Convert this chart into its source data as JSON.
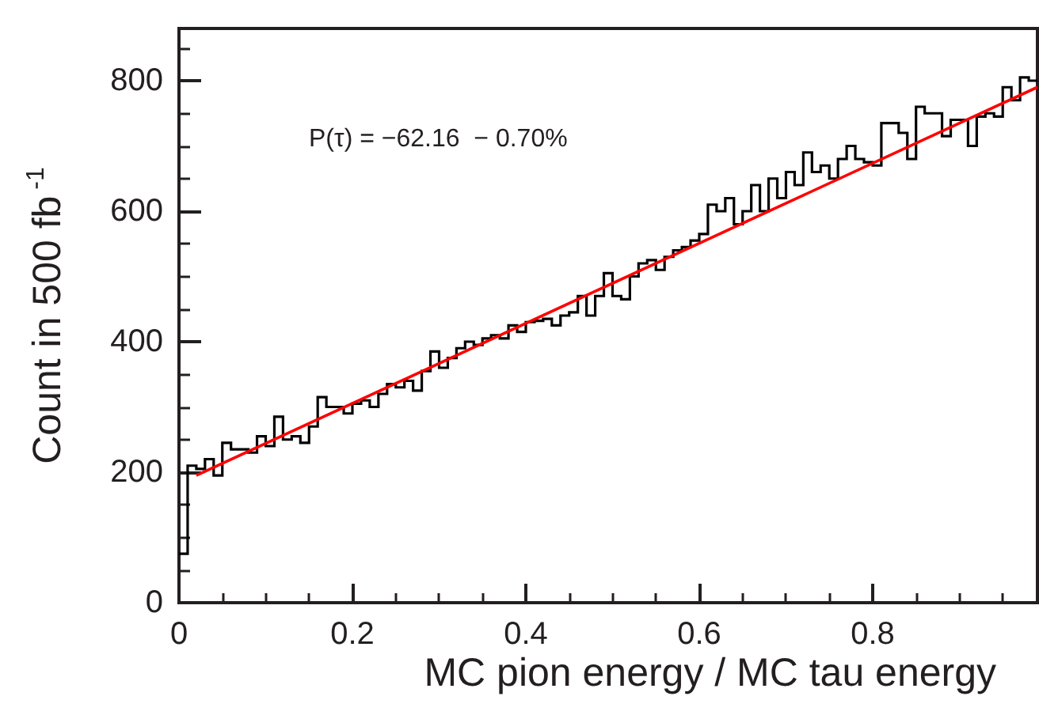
{
  "chart_data": {
    "type": "histogram",
    "xlabel": "MC pion energy / MC tau energy",
    "ylabel": "Count in 500 fb$^{-1}$",
    "annotations": [
      "P(τ) = −62.16  − 0.70%"
    ],
    "bins": [
      0,
      0.01,
      0.02,
      0.03,
      0.04,
      0.05,
      0.06,
      0.07,
      0.08,
      0.09,
      0.1,
      0.11,
      0.12,
      0.13,
      0.14,
      0.15,
      0.16,
      0.17,
      0.18,
      0.19,
      0.2,
      0.21,
      0.22,
      0.23,
      0.24,
      0.25,
      0.26,
      0.27,
      0.28,
      0.29,
      0.3,
      0.31,
      0.32,
      0.33,
      0.34,
      0.35,
      0.36,
      0.37,
      0.38,
      0.39,
      0.4,
      0.41,
      0.42,
      0.43,
      0.44,
      0.45,
      0.46,
      0.47,
      0.48,
      0.49,
      0.5,
      0.51,
      0.52,
      0.53,
      0.54,
      0.55,
      0.56,
      0.57,
      0.58,
      0.59,
      0.6,
      0.61,
      0.62,
      0.63,
      0.64,
      0.65,
      0.66,
      0.67,
      0.68,
      0.69,
      0.7,
      0.71,
      0.72,
      0.73,
      0.74,
      0.75,
      0.76,
      0.77,
      0.78,
      0.79,
      0.8,
      0.81,
      0.82,
      0.83,
      0.84,
      0.85,
      0.86,
      0.87,
      0.88,
      0.89,
      0.9,
      0.91,
      0.92,
      0.93,
      0.94,
      0.95,
      0.96,
      0.97,
      0.98,
      0.99
    ],
    "series": [
      {
        "color": "#000000",
        "values": [
          75,
          210,
          205,
          220,
          195,
          245,
          235,
          235,
          230,
          255,
          240,
          285,
          250,
          255,
          245,
          270,
          315,
          300,
          300,
          290,
          305,
          310,
          300,
          320,
          335,
          330,
          340,
          325,
          355,
          385,
          360,
          375,
          390,
          400,
          395,
          405,
          410,
          405,
          425,
          415,
          430,
          432,
          435,
          425,
          440,
          445,
          470,
          440,
          470,
          505,
          470,
          465,
          500,
          520,
          525,
          510,
          530,
          540,
          545,
          555,
          565,
          610,
          600,
          620,
          580,
          600,
          640,
          600,
          650,
          620,
          660,
          640,
          690,
          660,
          670,
          650,
          680,
          700,
          680,
          675,
          670,
          735,
          735,
          720,
          680,
          760,
          750,
          750,
          715,
          740,
          740,
          700,
          745,
          750,
          745,
          790,
          770,
          805,
          800
        ]
      },
      {
        "type": "line",
        "color": "#ff0000",
        "x": [
          0.02,
          0.99
        ],
        "values": [
          195,
          790
        ]
      }
    ],
    "xlim": [
      0,
      0.99
    ],
    "xticks": [
      0,
      0.2,
      0.4,
      0.6,
      0.8
    ],
    "ylim": [
      0,
      880
    ],
    "yticks": [
      0,
      200,
      400,
      600,
      800
    ],
    "grid": false,
    "marker": "none"
  }
}
